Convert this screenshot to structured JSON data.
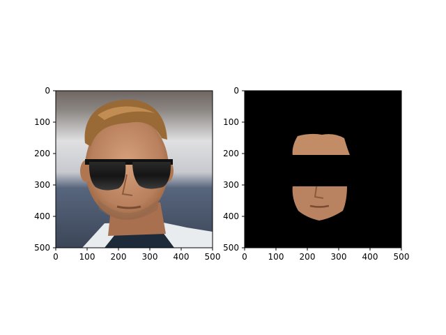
{
  "chart_data": [
    {
      "type": "image",
      "title": "",
      "xlabel": "",
      "ylabel": "",
      "xlim": [
        0,
        500
      ],
      "ylim": [
        500,
        0
      ],
      "x_ticks": [
        "0",
        "100",
        "200",
        "300",
        "400",
        "500"
      ],
      "y_ticks": [
        "0",
        "100",
        "200",
        "300",
        "400",
        "500"
      ],
      "content": "face-photo-with-sunglasses",
      "grid": false
    },
    {
      "type": "image",
      "title": "",
      "xlabel": "",
      "ylabel": "",
      "xlim": [
        0,
        500
      ],
      "ylim": [
        500,
        0
      ],
      "x_ticks": [
        "0",
        "100",
        "200",
        "300",
        "400",
        "500"
      ],
      "y_ticks": [
        "0",
        "100",
        "200",
        "300",
        "400",
        "500"
      ],
      "content": "masked-face-with-sunglasses-on-black",
      "grid": false
    }
  ],
  "colors": {
    "background_photo_top": "#7a6e68",
    "background_photo_mid": "#d8d8dc",
    "background_photo_bottom": "#4b5a72",
    "skin": "#c89270",
    "hair": "#9a6a36",
    "glasses": "#111111",
    "mask_background": "#000000"
  }
}
